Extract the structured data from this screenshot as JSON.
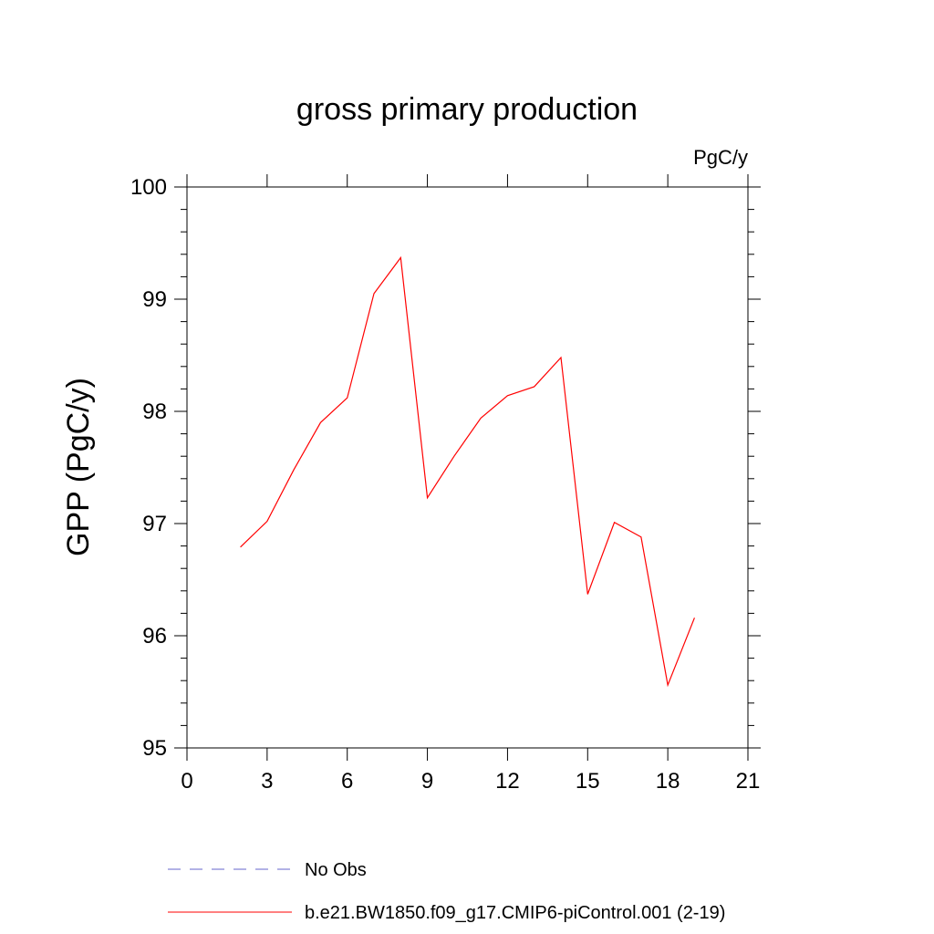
{
  "chart_data": {
    "type": "line",
    "title": "gross primary production",
    "units_label": "PgC/y",
    "ylabel": "GPP  (PgC/y)",
    "xlabel": "",
    "xlim": [
      0,
      21
    ],
    "ylim": [
      95,
      100
    ],
    "x_ticks": [
      0,
      3,
      6,
      9,
      12,
      15,
      18,
      21
    ],
    "y_ticks": [
      95,
      96,
      97,
      98,
      99,
      100
    ],
    "grid": false,
    "legend_position": "bottom",
    "series": [
      {
        "name": "b.e21.BW1850.f09_g17.CMIP6-piControl.001 (2-19)",
        "color": "#ff0000",
        "style": "solid",
        "x": [
          2,
          3,
          4,
          5,
          6,
          7,
          8,
          9,
          10,
          11,
          12,
          13,
          14,
          15,
          16,
          17,
          18,
          19
        ],
        "y": [
          96.79,
          97.02,
          97.48,
          97.9,
          98.12,
          99.05,
          99.37,
          97.23,
          97.6,
          97.94,
          98.14,
          98.22,
          98.48,
          96.37,
          97.01,
          96.88,
          95.56,
          96.16
        ]
      }
    ],
    "legend": [
      {
        "label": "No Obs",
        "color": "#6666cc",
        "style": "dashed"
      },
      {
        "label": "b.e21.BW1850.f09_g17.CMIP6-piControl.001 (2-19)",
        "color": "#ff0000",
        "style": "solid"
      }
    ]
  }
}
